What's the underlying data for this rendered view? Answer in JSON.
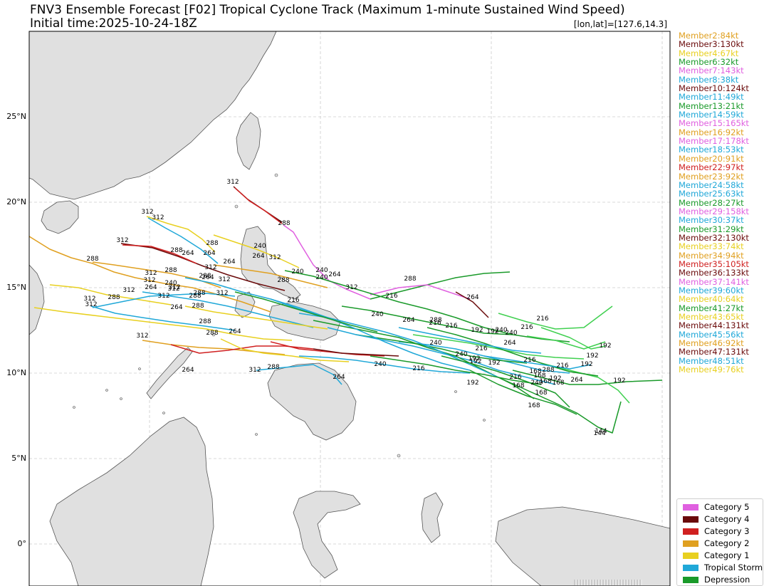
{
  "header": {
    "title": "FNV3 Ensemble Forecast [F02] Tropical Cyclone Track (Maximum 1-minute Sustained Wind Speed)",
    "subtitle": "Initial time:2025-10-24-18Z",
    "coord_label": "[lon,lat]=[127.6,14.3]"
  },
  "axis": {
    "lat_labels": [
      "25°N",
      "20°N",
      "15°N",
      "10°N",
      "5°N",
      "0°"
    ]
  },
  "members": [
    {
      "label": "Member2:84kt",
      "color": "#e0a020"
    },
    {
      "label": "Member3:130kt",
      "color": "#6a0a0a"
    },
    {
      "label": "Member4:67kt",
      "color": "#e8d020"
    },
    {
      "label": "Member6:32kt",
      "color": "#1a9a2a"
    },
    {
      "label": "Member7:143kt",
      "color": "#e060e0"
    },
    {
      "label": "Member8:38kt",
      "color": "#20a8d8"
    },
    {
      "label": "Member10:124kt",
      "color": "#6a0a0a"
    },
    {
      "label": "Member11:49kt",
      "color": "#20a8d8"
    },
    {
      "label": "Member13:21kt",
      "color": "#1a9a2a"
    },
    {
      "label": "Member14:59kt",
      "color": "#20a8d8"
    },
    {
      "label": "Member15:165kt",
      "color": "#e060e0"
    },
    {
      "label": "Member16:92kt",
      "color": "#e0a020"
    },
    {
      "label": "Member17:178kt",
      "color": "#e060e0"
    },
    {
      "label": "Member18:53kt",
      "color": "#20a8d8"
    },
    {
      "label": "Member20:91kt",
      "color": "#e0a020"
    },
    {
      "label": "Member22:97kt",
      "color": "#d02020"
    },
    {
      "label": "Member23:92kt",
      "color": "#e0a020"
    },
    {
      "label": "Member24:58kt",
      "color": "#20a8d8"
    },
    {
      "label": "Member25:63kt",
      "color": "#20a8d8"
    },
    {
      "label": "Member28:27kt",
      "color": "#1a9a2a"
    },
    {
      "label": "Member29:158kt",
      "color": "#e060e0"
    },
    {
      "label": "Member30:37kt",
      "color": "#20a8d8"
    },
    {
      "label": "Member31:29kt",
      "color": "#1a9a2a"
    },
    {
      "label": "Member32:130kt",
      "color": "#6a0a0a"
    },
    {
      "label": "Member33:74kt",
      "color": "#e8d020"
    },
    {
      "label": "Member34:94kt",
      "color": "#e0a020"
    },
    {
      "label": "Member35:105kt",
      "color": "#d02020"
    },
    {
      "label": "Member36:133kt",
      "color": "#6a0a0a"
    },
    {
      "label": "Member37:141kt",
      "color": "#e060e0"
    },
    {
      "label": "Member39:60kt",
      "color": "#20a8d8"
    },
    {
      "label": "Member40:64kt",
      "color": "#e8d020"
    },
    {
      "label": "Member41:27kt",
      "color": "#1a9a2a"
    },
    {
      "label": "Member43:65kt",
      "color": "#e8d020"
    },
    {
      "label": "Member44:131kt",
      "color": "#6a0a0a"
    },
    {
      "label": "Member45:56kt",
      "color": "#20a8d8"
    },
    {
      "label": "Member46:92kt",
      "color": "#e0a020"
    },
    {
      "label": "Member47:131kt",
      "color": "#6a0a0a"
    },
    {
      "label": "Member48:51kt",
      "color": "#20a8d8"
    },
    {
      "label": "Member49:76kt",
      "color": "#e8d020"
    }
  ],
  "categories": [
    {
      "label": "Category 5",
      "color": "#e060e0"
    },
    {
      "label": "Category 4",
      "color": "#6a0a0a"
    },
    {
      "label": "Category 3",
      "color": "#d02020"
    },
    {
      "label": "Category 2",
      "color": "#e0a020"
    },
    {
      "label": "Category 1",
      "color": "#e8d020"
    },
    {
      "label": "Tropical Storm",
      "color": "#20a8d8"
    },
    {
      "label": "Depression",
      "color": "#1a9a2a"
    }
  ],
  "colors": {
    "land": "#e0e0e0",
    "coast": "#555555",
    "grid": "#cccccc",
    "depression_light": "#40d050"
  },
  "tracks": {
    "description_hours": [
      "144",
      "168",
      "192",
      "216",
      "240",
      "264",
      "288",
      "312"
    ],
    "labels": [
      {
        "text": "312"
      },
      {
        "text": "288"
      },
      {
        "text": "312"
      },
      {
        "text": "312"
      },
      {
        "text": "288"
      },
      {
        "text": "312"
      },
      {
        "text": "288"
      },
      {
        "text": "288"
      },
      {
        "text": "264"
      },
      {
        "text": "240"
      },
      {
        "text": "264"
      },
      {
        "text": "312"
      },
      {
        "text": "288"
      },
      {
        "text": "312"
      },
      {
        "text": "312"
      },
      {
        "text": "312"
      },
      {
        "text": "288"
      },
      {
        "text": "264"
      },
      {
        "text": "312"
      },
      {
        "text": "312"
      },
      {
        "text": "288"
      },
      {
        "text": "288"
      },
      {
        "text": "312"
      },
      {
        "text": "264"
      },
      {
        "text": "312"
      },
      {
        "text": "288"
      },
      {
        "text": "240"
      },
      {
        "text": "264"
      },
      {
        "text": "312"
      },
      {
        "text": "288"
      },
      {
        "text": "264"
      },
      {
        "text": "240"
      },
      {
        "text": "264"
      },
      {
        "text": "216"
      },
      {
        "text": "288"
      },
      {
        "text": "312"
      },
      {
        "text": "264"
      },
      {
        "text": "240"
      },
      {
        "text": "216"
      },
      {
        "text": "240"
      },
      {
        "text": "264"
      },
      {
        "text": "288"
      },
      {
        "text": "312"
      },
      {
        "text": "288"
      },
      {
        "text": "312"
      },
      {
        "text": "312"
      },
      {
        "text": "264"
      },
      {
        "text": "240"
      },
      {
        "text": "216"
      },
      {
        "text": "216"
      },
      {
        "text": "192"
      },
      {
        "text": "240"
      },
      {
        "text": "264"
      },
      {
        "text": "288"
      },
      {
        "text": "216"
      },
      {
        "text": "240"
      },
      {
        "text": "192"
      },
      {
        "text": "216"
      },
      {
        "text": "240"
      },
      {
        "text": "192"
      },
      {
        "text": "216"
      },
      {
        "text": "240"
      },
      {
        "text": "216"
      },
      {
        "text": "192"
      },
      {
        "text": "168"
      },
      {
        "text": "216"
      },
      {
        "text": "240"
      },
      {
        "text": "192"
      },
      {
        "text": "216"
      },
      {
        "text": "168"
      },
      {
        "text": "192"
      },
      {
        "text": "144"
      },
      {
        "text": "168"
      },
      {
        "text": "168"
      },
      {
        "text": "168"
      },
      {
        "text": "168"
      },
      {
        "text": "192"
      },
      {
        "text": "264"
      },
      {
        "text": "192"
      },
      {
        "text": "168"
      },
      {
        "text": "192"
      },
      {
        "text": "192"
      },
      {
        "text": "144"
      },
      {
        "text": "288"
      },
      {
        "text": "264"
      },
      {
        "text": "216"
      },
      {
        "text": "192"
      },
      {
        "text": "288"
      },
      {
        "text": "312"
      },
      {
        "text": "264"
      },
      {
        "text": "240"
      },
      {
        "text": "312"
      },
      {
        "text": "288"
      },
      {
        "text": "264"
      }
    ]
  }
}
